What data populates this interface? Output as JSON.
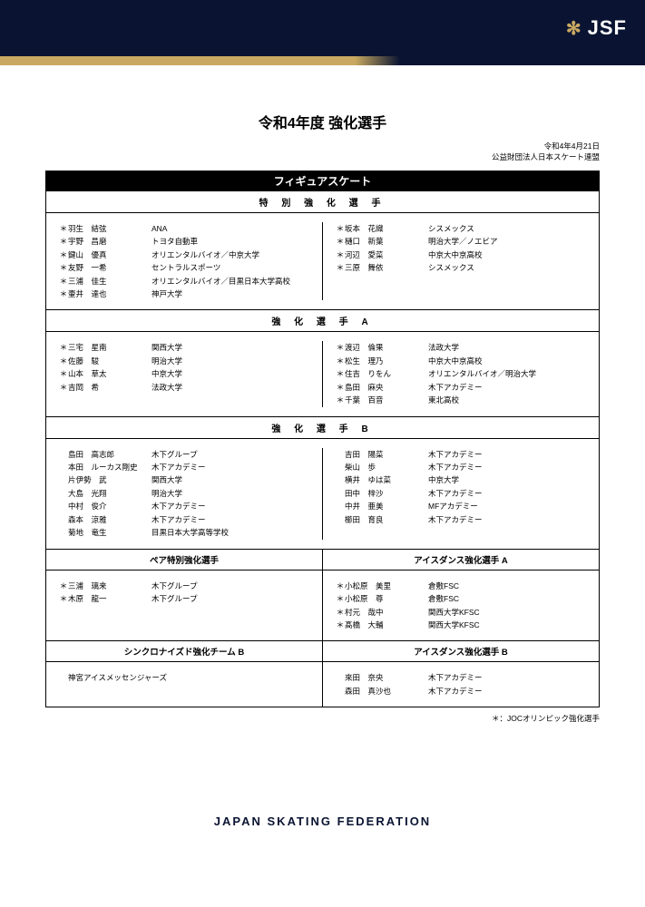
{
  "header": {
    "logo": "JSF"
  },
  "title": "令和4年度 強化選手",
  "date": "令和4年4月21日",
  "org": "公益財団法人日本スケート連盟",
  "discipline": "フィギュアスケート",
  "note": "＊：JOCオリンピック強化選手",
  "footer": "JAPAN SKATING FEDERATION",
  "sections": [
    {
      "header": "特 別 強 化 選 手",
      "left": [
        {
          "m": "＊",
          "n": "羽生　結弦",
          "a": "ANA"
        },
        {
          "m": "＊",
          "n": "宇野　昌磨",
          "a": "トヨタ自動車"
        },
        {
          "m": "＊",
          "n": "鍵山　優真",
          "a": "オリエンタルバイオ／中京大学"
        },
        {
          "m": "＊",
          "n": "友野　一希",
          "a": "セントラルスポーツ"
        },
        {
          "m": "＊",
          "n": "三浦　佳生",
          "a": "オリエンタルバイオ／目黒日本大学高校"
        },
        {
          "m": "＊",
          "n": "壷井　達也",
          "a": "神戸大学"
        }
      ],
      "right": [
        {
          "m": "＊",
          "n": "坂本　花織",
          "a": "シスメックス"
        },
        {
          "m": "＊",
          "n": "樋口　新葉",
          "a": "明治大学／ノエビア"
        },
        {
          "m": "＊",
          "n": "河辺　愛菜",
          "a": "中京大中京高校"
        },
        {
          "m": "＊",
          "n": "三原　舞依",
          "a": "シスメックス"
        }
      ]
    },
    {
      "header": "強 化 選 手 A",
      "left": [
        {
          "m": "＊",
          "n": "三宅　星南",
          "a": "関西大学"
        },
        {
          "m": "＊",
          "n": "佐藤　駿",
          "a": "明治大学"
        },
        {
          "m": "＊",
          "n": "山本　草太",
          "a": "中京大学"
        },
        {
          "m": "＊",
          "n": "吉岡　希",
          "a": "法政大学"
        }
      ],
      "right": [
        {
          "m": "＊",
          "n": "渡辺　倫果",
          "a": "法政大学"
        },
        {
          "m": "＊",
          "n": "松生　理乃",
          "a": "中京大中京高校"
        },
        {
          "m": "＊",
          "n": "住吉　りをん",
          "a": "オリエンタルバイオ／明治大学"
        },
        {
          "m": "＊",
          "n": "島田　麻央",
          "a": "木下アカデミー"
        },
        {
          "m": "＊",
          "n": "千葉　百音",
          "a": "東北高校"
        }
      ]
    },
    {
      "header": "強 化 選 手 B",
      "left": [
        {
          "m": "",
          "n": "島田　高志郎",
          "a": "木下グループ"
        },
        {
          "m": "",
          "n": "本田　ルーカス剛史",
          "a": "木下アカデミー"
        },
        {
          "m": "",
          "n": "片伊勢　武",
          "a": "関西大学"
        },
        {
          "m": "",
          "n": "大島　光翔",
          "a": "明治大学"
        },
        {
          "m": "",
          "n": "中村　俊介",
          "a": "木下アカデミー"
        },
        {
          "m": "",
          "n": "森本　涼雅",
          "a": "木下アカデミー"
        },
        {
          "m": "",
          "n": "菊地　竜生",
          "a": "目黒日本大学高等学校"
        }
      ],
      "right": [
        {
          "m": "",
          "n": "吉田　陽菜",
          "a": "木下アカデミー"
        },
        {
          "m": "",
          "n": "柴山　歩",
          "a": "木下アカデミー"
        },
        {
          "m": "",
          "n": "横井　ゆは菜",
          "a": "中京大学"
        },
        {
          "m": "",
          "n": "田中　梓沙",
          "a": "木下アカデミー"
        },
        {
          "m": "",
          "n": "中井　亜美",
          "a": "MFアカデミー"
        },
        {
          "m": "",
          "n": "櫛田　育良",
          "a": "木下アカデミー"
        }
      ]
    }
  ],
  "split1": {
    "leftHeader": "ペア特別強化選手",
    "rightHeader": "アイスダンス強化選手 A",
    "left": [
      {
        "m": "＊",
        "n": "三浦　璃来",
        "a": "木下グループ"
      },
      {
        "m": "＊",
        "n": "木原　龍一",
        "a": "木下グループ"
      }
    ],
    "right": [
      {
        "m": "＊",
        "n": "小松原　美里",
        "a": "倉敷FSC"
      },
      {
        "m": "＊",
        "n": "小松原　尊",
        "a": "倉敷FSC"
      },
      {
        "m": "",
        "n": "",
        "a": ""
      },
      {
        "m": "＊",
        "n": "村元　哉中",
        "a": "関西大学KFSC"
      },
      {
        "m": "＊",
        "n": "髙橋　大輔",
        "a": "関西大学KFSC"
      }
    ]
  },
  "split2": {
    "leftHeader": "シンクロナイズド強化チーム B",
    "rightHeader": "アイスダンス強化選手 B",
    "leftText": "神宮アイスメッセンジャーズ",
    "right": [
      {
        "m": "",
        "n": "來田　奈央",
        "a": "木下アカデミー"
      },
      {
        "m": "",
        "n": "森田　真沙也",
        "a": "木下アカデミー"
      }
    ]
  }
}
